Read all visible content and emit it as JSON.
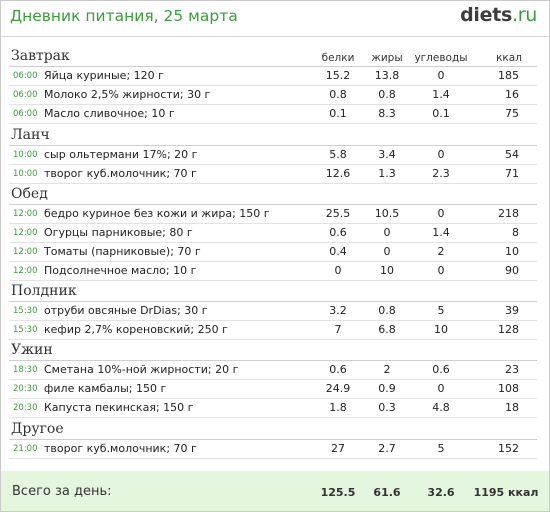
{
  "header": {
    "title": "Дневник питания, 25 марта",
    "logo_main": "diets",
    "logo_tld": ".ru"
  },
  "columns": {
    "protein": "белки",
    "fat": "жиры",
    "carbs": "углеводы",
    "kcal": "ккал"
  },
  "sections": [
    {
      "title": "Завтрак",
      "items": [
        {
          "time": "06:00",
          "name": "Яйца куриные; 120 г",
          "p": "15.2",
          "f": "13.8",
          "c": "0",
          "k": "185"
        },
        {
          "time": "06:00",
          "name": "Молоко 2,5% жирности; 30 г",
          "p": "0.8",
          "f": "0.8",
          "c": "1.4",
          "k": "16"
        },
        {
          "time": "06:00",
          "name": "Масло сливочное; 10 г",
          "p": "0.1",
          "f": "8.3",
          "c": "0.1",
          "k": "75"
        }
      ]
    },
    {
      "title": "Ланч",
      "items": [
        {
          "time": "10:00",
          "name": "сыр ольтермани 17%; 20 г",
          "p": "5.8",
          "f": "3.4",
          "c": "0",
          "k": "54"
        },
        {
          "time": "10:00",
          "name": "творог  куб.молочник; 70 г",
          "p": "12.6",
          "f": "1.3",
          "c": "2.3",
          "k": "71"
        }
      ]
    },
    {
      "title": "Обед",
      "items": [
        {
          "time": "12:00",
          "name": "бедро куриное без кожи и жира; 150 г",
          "p": "25.5",
          "f": "10.5",
          "c": "0",
          "k": "218"
        },
        {
          "time": "12:00",
          "name": "Огурцы парниковые; 80 г",
          "p": "0.6",
          "f": "0",
          "c": "1.4",
          "k": "8"
        },
        {
          "time": "12:00",
          "name": "Томаты (парниковые); 70 г",
          "p": "0.4",
          "f": "0",
          "c": "2",
          "k": "10"
        },
        {
          "time": "12:00",
          "name": "Подсолнечное масло; 10 г",
          "p": "0",
          "f": "10",
          "c": "0",
          "k": "90"
        }
      ]
    },
    {
      "title": "Полдник",
      "items": [
        {
          "time": "15:30",
          "name": "отруби овсяные DrDias; 30 г",
          "p": "3.2",
          "f": "0.8",
          "c": "5",
          "k": "39"
        },
        {
          "time": "15:30",
          "name": "кефир 2,7% кореновский; 250 г",
          "p": "7",
          "f": "6.8",
          "c": "10",
          "k": "128"
        }
      ]
    },
    {
      "title": "Ужин",
      "items": [
        {
          "time": "18:30",
          "name": "Сметана 10%-ной жирности; 20 г",
          "p": "0.6",
          "f": "2",
          "c": "0.6",
          "k": "23"
        },
        {
          "time": "20:30",
          "name": "филе камбалы; 150 г",
          "p": "24.9",
          "f": "0.9",
          "c": "0",
          "k": "108"
        },
        {
          "time": "20:30",
          "name": "Капуста пекинская; 150 г",
          "p": "1.8",
          "f": "0.3",
          "c": "4.8",
          "k": "18"
        }
      ]
    },
    {
      "title": "Другое",
      "items": [
        {
          "time": "21:00",
          "name": "творог  куб.молочник; 70 г",
          "p": "27",
          "f": "2.7",
          "c": "5",
          "k": "152"
        }
      ]
    }
  ],
  "total": {
    "label": "Всего за день:",
    "p": "125.5",
    "f": "61.6",
    "c": "32.6",
    "k": "1195 ккал"
  }
}
